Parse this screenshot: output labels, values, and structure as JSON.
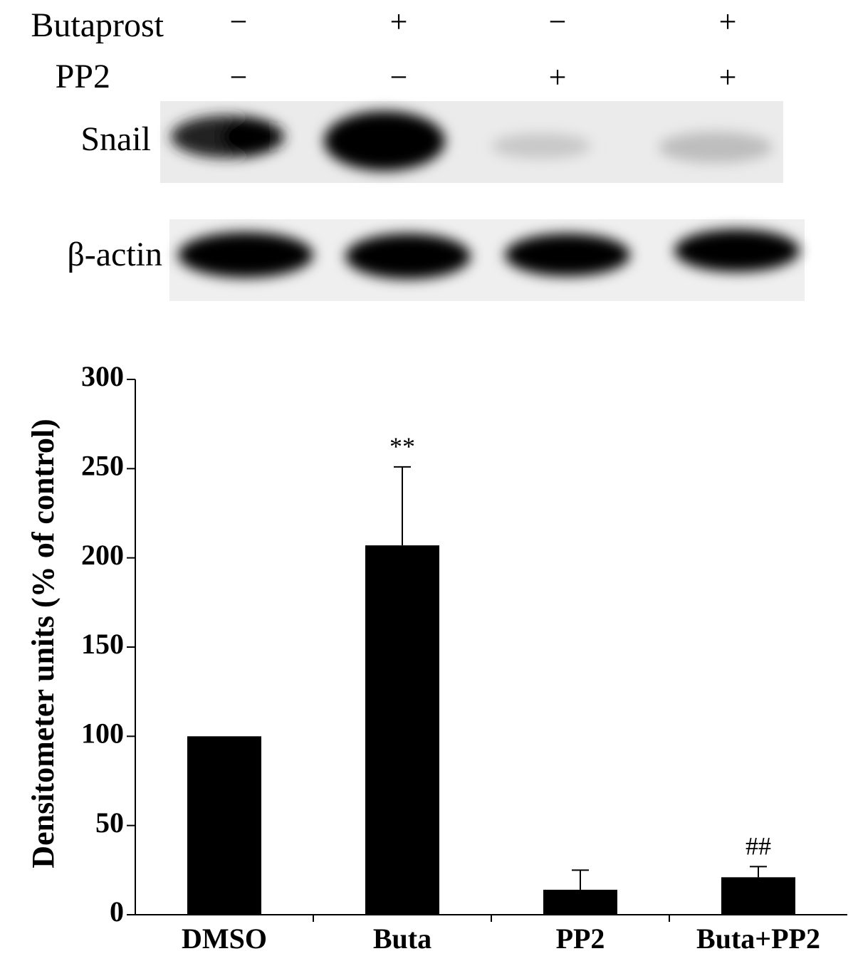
{
  "blot": {
    "rows": [
      {
        "label": "Butaprost",
        "signs": [
          "−",
          "+",
          "−",
          "+"
        ]
      },
      {
        "label": "PP2",
        "signs": [
          "−",
          "−",
          "+",
          "+"
        ]
      }
    ],
    "bands": [
      "Snail",
      "β-actin"
    ]
  },
  "chart_data": {
    "type": "bar",
    "y_label": "Densitometer units (% of control)",
    "categories": [
      "DMSO",
      "Buta",
      "PP2",
      "Buta+PP2"
    ],
    "values": [
      100,
      207,
      14,
      21
    ],
    "errors": [
      null,
      44,
      11,
      6
    ],
    "annotations": [
      null,
      "**",
      null,
      "##"
    ],
    "color": "#000000",
    "ylim": [
      0,
      300
    ],
    "yticks": [
      0,
      50,
      100,
      150,
      200,
      250,
      300
    ]
  }
}
